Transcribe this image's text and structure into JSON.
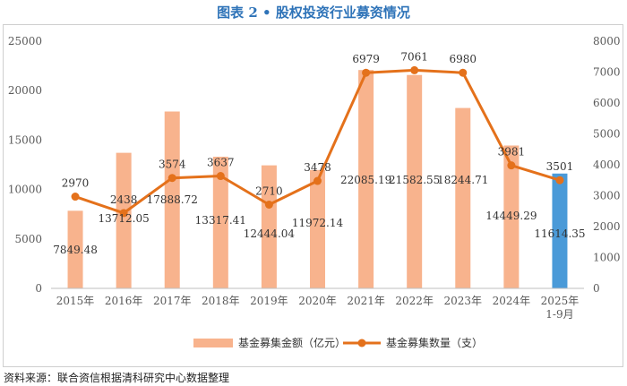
{
  "title": "图表 2 • 股权投资行业募资情况",
  "source": "资料来源：联合资信根据清科研究中心数据整理",
  "colors": {
    "bar": "#f8b38d",
    "bar_highlight": "#4a9ad8",
    "line": "#e4711b",
    "title": "#2e73b8",
    "text": "#333333",
    "axis": "#595959"
  },
  "chart_data": {
    "type": "bar",
    "categories": [
      "2015年",
      "2016年",
      "2017年",
      "2018年",
      "2019年",
      "2020年",
      "2021年",
      "2022年",
      "2023年",
      "2024年",
      "2025年\n1-9月"
    ],
    "series": [
      {
        "name": "基金募集金额（亿元）",
        "type": "bar",
        "axis": "left",
        "values": [
          7849.48,
          13712.05,
          17888.72,
          13317.41,
          12444.04,
          11972.14,
          22085.19,
          21582.55,
          18244.71,
          14449.29,
          11614.35
        ]
      },
      {
        "name": "基金募集数量（支）",
        "type": "line",
        "axis": "right",
        "values": [
          2970,
          2438,
          3574,
          3637,
          2710,
          3478,
          6979,
          7061,
          6980,
          3981,
          3501
        ]
      }
    ],
    "y_left": {
      "min": 0,
      "max": 25000,
      "ticks": [
        0,
        5000,
        10000,
        15000,
        20000,
        25000
      ]
    },
    "y_right": {
      "min": 0,
      "max": 8000,
      "ticks": [
        0,
        1000,
        2000,
        3000,
        4000,
        5000,
        6000,
        7000,
        8000
      ]
    },
    "highlight_index": 10,
    "legend_position": "bottom"
  }
}
